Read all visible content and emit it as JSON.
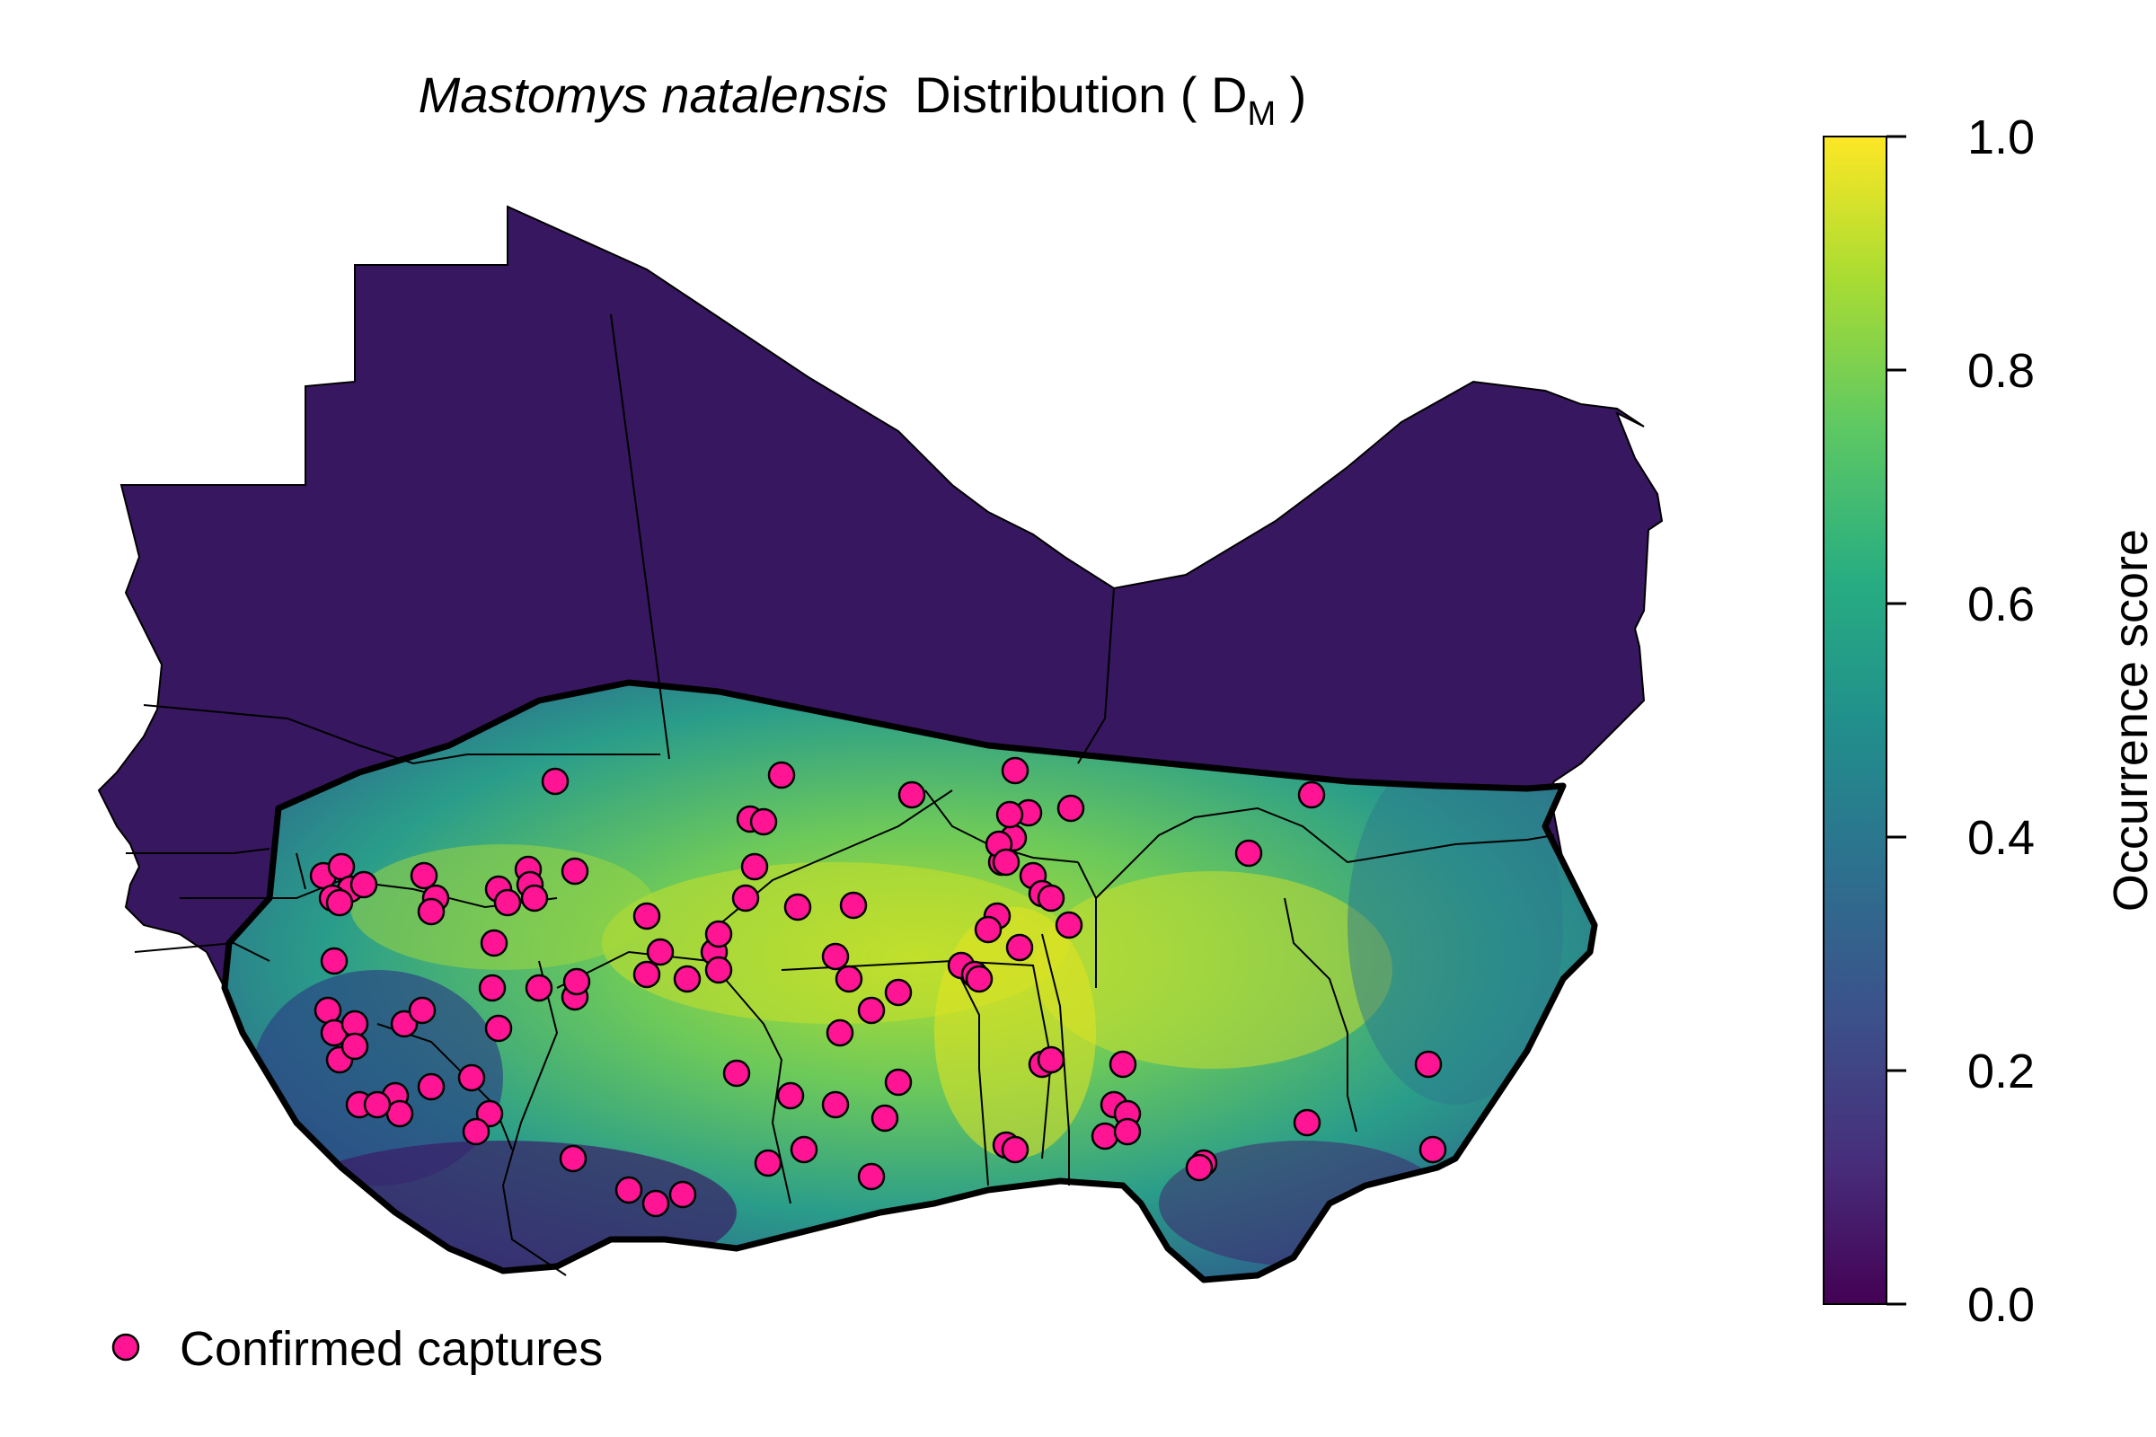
{
  "map": {
    "title_species": "Mastomys natalensis",
    "title_rest": "Distribution ( D",
    "title_subscript": "M",
    "title_close": " )",
    "region_fill_color": "#37175f",
    "border_color": "#000000",
    "colorscale": [
      "#440154",
      "#3b528b",
      "#21908c",
      "#5dc863",
      "#fde725"
    ]
  },
  "colorbar": {
    "label": "Occurrence score",
    "range": [
      0,
      1
    ],
    "ticks": [
      "0.0",
      "0.2",
      "0.4",
      "0.6",
      "0.8",
      "1.0"
    ]
  },
  "legend": {
    "label": "Confirmed captures",
    "marker_color": "#ff1493",
    "marker_edge_color": "#000000"
  }
}
